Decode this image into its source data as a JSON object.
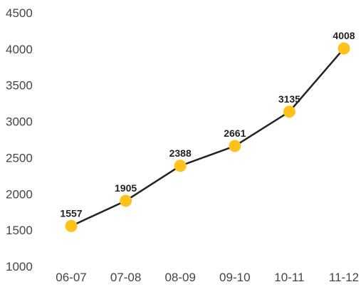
{
  "chart_data": {
    "type": "line",
    "categories": [
      "06-07",
      "07-08",
      "08-09",
      "09-10",
      "10-11",
      "11-12"
    ],
    "values": [
      1557,
      1905,
      2388,
      2661,
      3135,
      4008
    ],
    "data_labels": [
      "1557",
      "1905",
      "2388",
      "2661",
      "3135",
      "4008"
    ],
    "title": "",
    "xlabel": "",
    "ylabel": "",
    "ylim": [
      1000,
      4500
    ],
    "yticks": [
      "1000",
      "1500",
      "2000",
      "2500",
      "3000",
      "3500",
      "4000",
      "4500"
    ],
    "grid": false,
    "legend": "none",
    "colors": {
      "line": "#222222",
      "marker": "#FFC21A"
    }
  }
}
